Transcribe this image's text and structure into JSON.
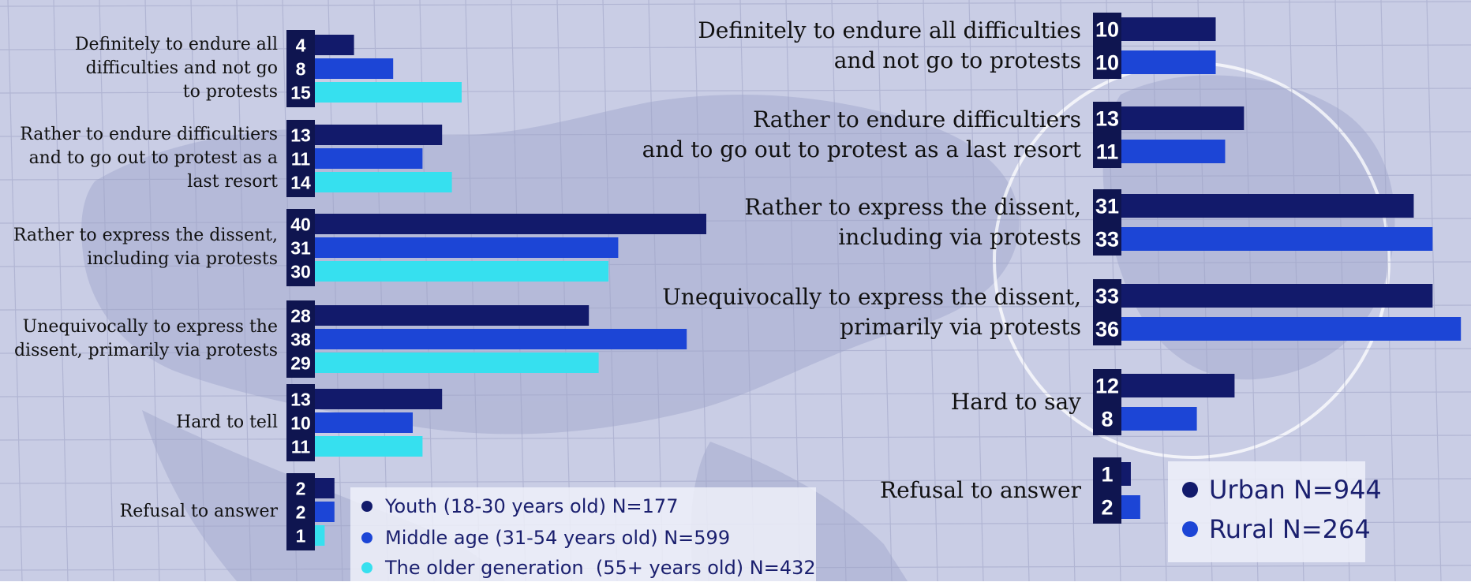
{
  "colors": {
    "youth": "#121a6b",
    "middle": "#1c45d6",
    "older": "#36e0ef",
    "urban": "#121a6b",
    "rural": "#1c45d6",
    "value_box": "#0f1550",
    "background": "#c9cde5"
  },
  "chart_data": [
    {
      "type": "bar",
      "orientation": "horizontal",
      "categories": [
        "Definitely to endure all difficulties and not go to protests",
        "Rather to endure difficultiers and to go out to protest as a last resort",
        "Rather to express the dissent, including via protests",
        "Unequivocally to express the dissent, primarily via protests",
        "Hard to tell",
        "Refusal to answer"
      ],
      "series": [
        {
          "name": "Youth (18-30 years old) N=177",
          "values": [
            4,
            13,
            40,
            28,
            13,
            2
          ]
        },
        {
          "name": "Middle age (31-54 years old) N=599",
          "values": [
            8,
            11,
            31,
            38,
            10,
            2
          ]
        },
        {
          "name": "The older generation  (55+ years old) N=432",
          "values": [
            15,
            14,
            30,
            29,
            11,
            1
          ]
        }
      ],
      "data_labels": true,
      "legend": "bottom-center"
    },
    {
      "type": "bar",
      "orientation": "horizontal",
      "categories": [
        "Definitely to endure all difficulties and not go to protests",
        "Rather to endure difficultiers and to go out to protest as a last resort",
        "Rather to express the dissent, including via protests",
        "Unequivocally to express the dissent, primarily via protests",
        "Hard to say",
        "Refusal to answer"
      ],
      "series": [
        {
          "name": "Urban N=944",
          "values": [
            10,
            13,
            31,
            33,
            12,
            1
          ]
        },
        {
          "name": "Rural N=264",
          "values": [
            10,
            11,
            33,
            36,
            8,
            2
          ]
        }
      ],
      "data_labels": true,
      "legend": "bottom-right"
    }
  ],
  "left_labels": [
    [
      "Definitely to endure all",
      "difficulties and not go",
      "to protests"
    ],
    [
      "Rather to endure difficultiers",
      "and to go out to protest as a",
      "last resort"
    ],
    [
      "Rather to express the dissent,",
      "including via protests"
    ],
    [
      "Unequivocally to express the",
      "dissent, primarily via protests"
    ],
    [
      "Hard to tell"
    ],
    [
      "Refusal to answer"
    ]
  ],
  "right_labels": [
    [
      "Definitely to endure all difficulties",
      "and not go to protests"
    ],
    [
      "Rather to endure difficultiers",
      "and to go out to protest as a last resort"
    ],
    [
      "Rather to express the dissent,",
      "including via protests"
    ],
    [
      "Unequivocally to express the dissent,",
      "primarily via protests"
    ],
    [
      "Hard to say"
    ],
    [
      "Refusal to answer"
    ]
  ]
}
